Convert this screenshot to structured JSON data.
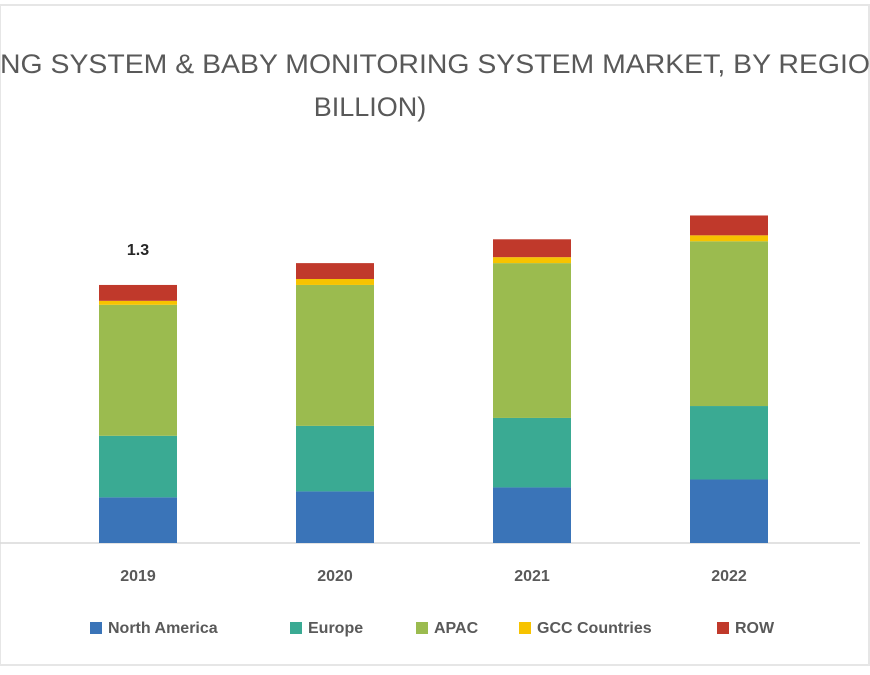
{
  "chart_data": {
    "type": "stacked_bar",
    "title": [
      "NG SYSTEM & BABY MONITORING SYSTEM MARKET, BY REGIO",
      "BILLION)"
    ],
    "categories": [
      "2019",
      "2020",
      "2021",
      "2022"
    ],
    "series": [
      {
        "name": "North America",
        "color": "#3a74b8",
        "values": [
          0.23,
          0.26,
          0.28,
          0.32
        ]
      },
      {
        "name": "Europe",
        "color": "#3aaa93",
        "values": [
          0.31,
          0.33,
          0.35,
          0.37
        ]
      },
      {
        "name": "APAC",
        "color": "#9bbb4f",
        "values": [
          0.66,
          0.71,
          0.78,
          0.83
        ]
      },
      {
        "name": "GCC Countries",
        "color": "#f7c300",
        "values": [
          0.02,
          0.03,
          0.03,
          0.03
        ]
      },
      {
        "name": "ROW",
        "color": "#c0392b",
        "values": [
          0.08,
          0.08,
          0.09,
          0.1
        ]
      }
    ],
    "annotations": [
      {
        "value": 1.3,
        "x": "2019"
      }
    ],
    "ylim": [
      0,
      2
    ]
  }
}
